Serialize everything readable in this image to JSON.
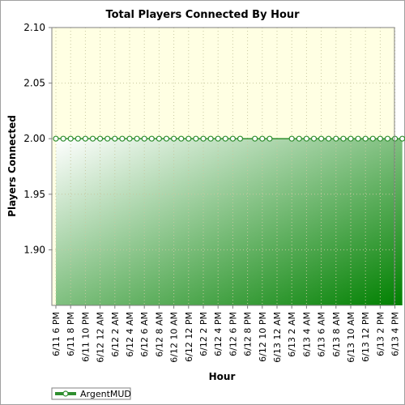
{
  "chart_data": {
    "type": "area",
    "title": "Total Players Connected By Hour",
    "xlabel": "Hour",
    "ylabel": "Players Connected",
    "ylim": [
      1.85,
      2.1
    ],
    "y_ticks": [
      "2.10",
      "2.05",
      "2.00",
      "1.95",
      "1.90"
    ],
    "y_tick_values": [
      2.1,
      2.05,
      2.0,
      1.95,
      1.9
    ],
    "x_tick_labels": [
      "6/11 6 PM",
      "6/11 8 PM",
      "6/11 10 PM",
      "6/12 12 AM",
      "6/12 2 AM",
      "6/12 4 AM",
      "6/12 6 AM",
      "6/12 8 AM",
      "6/12 10 AM",
      "6/12 12 PM",
      "6/12 2 PM",
      "6/12 4 PM",
      "6/12 6 PM",
      "6/12 8 PM",
      "6/12 10 PM",
      "6/13 12 AM",
      "6/13 2 AM",
      "6/13 4 AM",
      "6/13 6 AM",
      "6/13 8 AM",
      "6/13 10 AM",
      "6/13 12 PM",
      "6/13 2 PM",
      "6/13 4 PM"
    ],
    "grid": true,
    "legend_position": "bottom-left",
    "series": [
      {
        "name": "ArgentMUD",
        "line_color": "#2f8f2f",
        "marker": "circle",
        "points": [
          {
            "x": "6/11 6 PM",
            "y": 2
          },
          {
            "x": "6/11 7 PM",
            "y": 2
          },
          {
            "x": "6/11 8 PM",
            "y": 2
          },
          {
            "x": "6/11 9 PM",
            "y": 2
          },
          {
            "x": "6/11 10 PM",
            "y": 2
          },
          {
            "x": "6/11 11 PM",
            "y": 2
          },
          {
            "x": "6/12 12 AM",
            "y": 2
          },
          {
            "x": "6/12 1 AM",
            "y": 2
          },
          {
            "x": "6/12 2 AM",
            "y": 2
          },
          {
            "x": "6/12 3 AM",
            "y": 2
          },
          {
            "x": "6/12 4 AM",
            "y": 2
          },
          {
            "x": "6/12 5 AM",
            "y": 2
          },
          {
            "x": "6/12 6 AM",
            "y": 2
          },
          {
            "x": "6/12 7 AM",
            "y": 2
          },
          {
            "x": "6/12 8 AM",
            "y": 2
          },
          {
            "x": "6/12 9 AM",
            "y": 2
          },
          {
            "x": "6/12 10 AM",
            "y": 2
          },
          {
            "x": "6/12 11 AM",
            "y": 2
          },
          {
            "x": "6/12 12 PM",
            "y": 2
          },
          {
            "x": "6/12 1 PM",
            "y": 2
          },
          {
            "x": "6/12 2 PM",
            "y": 2
          },
          {
            "x": "6/12 3 PM",
            "y": 2
          },
          {
            "x": "6/12 4 PM",
            "y": 2
          },
          {
            "x": "6/12 5 PM",
            "y": 2
          },
          {
            "x": "6/12 6 PM",
            "y": 2
          },
          {
            "x": "6/12 7 PM",
            "y": 2
          },
          {
            "x": "6/12 9 PM",
            "y": 2
          },
          {
            "x": "6/12 10 PM",
            "y": 2
          },
          {
            "x": "6/12 11 PM",
            "y": 2
          },
          {
            "x": "6/13 2 AM",
            "y": 2
          },
          {
            "x": "6/13 3 AM",
            "y": 2
          },
          {
            "x": "6/13 4 AM",
            "y": 2
          },
          {
            "x": "6/13 5 AM",
            "y": 2
          },
          {
            "x": "6/13 6 AM",
            "y": 2
          },
          {
            "x": "6/13 7 AM",
            "y": 2
          },
          {
            "x": "6/13 8 AM",
            "y": 2
          },
          {
            "x": "6/13 9 AM",
            "y": 2
          },
          {
            "x": "6/13 10 AM",
            "y": 2
          },
          {
            "x": "6/13 11 AM",
            "y": 2
          },
          {
            "x": "6/13 12 PM",
            "y": 2
          },
          {
            "x": "6/13 1 PM",
            "y": 2
          },
          {
            "x": "6/13 2 PM",
            "y": 2
          },
          {
            "x": "6/13 3 PM",
            "y": 2
          },
          {
            "x": "6/13 4 PM",
            "y": 2
          },
          {
            "x": "6/13 5 PM",
            "y": 2
          }
        ]
      }
    ]
  }
}
